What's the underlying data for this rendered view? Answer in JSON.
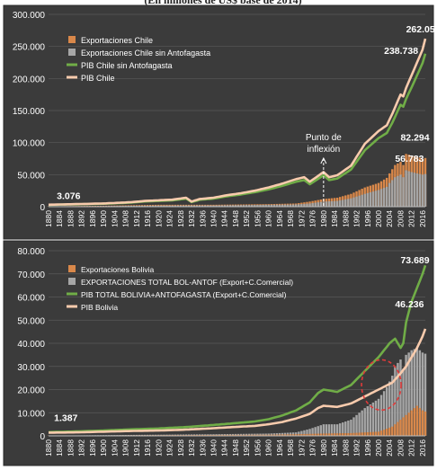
{
  "caption": "(En millones de US$ base de 2014)",
  "chart_data": [
    {
      "type": "bar+line",
      "title": "",
      "ylim": [
        0,
        300000
      ],
      "y_ticks": [
        "0",
        "50.000",
        "100.000",
        "150.000",
        "200.000",
        "250.000",
        "300.000"
      ],
      "y_tick_values": [
        0,
        50000,
        100000,
        150000,
        200000,
        250000,
        300000
      ],
      "x_start": 1880,
      "x_end": 2017,
      "x_tick_step": 4,
      "legend": [
        {
          "label": "Exportaciones Chile",
          "color": "#d9884a",
          "kind": "bar"
        },
        {
          "label": "Exportaciones Chile sin Antofagasta",
          "color": "#a6a6a6",
          "kind": "bar"
        },
        {
          "label": "PIB Chile sin Antofagasta",
          "color": "#70ad47",
          "kind": "line"
        },
        {
          "label": "PIB Chile",
          "color": "#f8cbad",
          "kind": "line"
        }
      ],
      "series": [
        {
          "name": "PIB Chile",
          "x": [
            1880,
            1890,
            1900,
            1910,
            1915,
            1920,
            1925,
            1930,
            1932,
            1935,
            1940,
            1945,
            1950,
            1955,
            1960,
            1965,
            1970,
            1973,
            1975,
            1980,
            1982,
            1985,
            1990,
            1995,
            2000,
            2003,
            2005,
            2008,
            2009,
            2010,
            2012,
            2014,
            2016,
            2017
          ],
          "values": [
            3076,
            4000,
            5000,
            7000,
            9000,
            10000,
            11000,
            14000,
            8000,
            12000,
            14000,
            18000,
            21000,
            25000,
            30000,
            36000,
            43000,
            46000,
            39000,
            54000,
            46000,
            49000,
            64000,
            98000,
            118000,
            127000,
            145000,
            175000,
            172000,
            185000,
            205000,
            225000,
            245000,
            262056
          ]
        },
        {
          "name": "PIB Chile sin Antofagasta",
          "x": [
            1880,
            1890,
            1900,
            1910,
            1915,
            1920,
            1925,
            1930,
            1932,
            1935,
            1940,
            1945,
            1950,
            1955,
            1960,
            1965,
            1970,
            1973,
            1975,
            1980,
            1982,
            1985,
            1990,
            1995,
            2000,
            2003,
            2005,
            2008,
            2009,
            2010,
            2012,
            2014,
            2016,
            2017
          ],
          "values": [
            2900,
            3700,
            4600,
            6300,
            8100,
            9000,
            9900,
            12600,
            7200,
            10800,
            12600,
            16300,
            19000,
            22600,
            27000,
            32500,
            39000,
            41500,
            35000,
            49000,
            41500,
            44000,
            58000,
            88000,
            107000,
            115000,
            131000,
            159000,
            156000,
            168000,
            186000,
            205000,
            224000,
            238738
          ]
        },
        {
          "name": "Exportaciones Chile",
          "x": [
            1880,
            1900,
            1920,
            1940,
            1960,
            1970,
            1975,
            1980,
            1985,
            1990,
            1995,
            2000,
            2003,
            2004,
            2006,
            2008,
            2009,
            2010,
            2012,
            2014,
            2016,
            2017
          ],
          "values": [
            500,
            1500,
            3000,
            3000,
            4000,
            5000,
            8000,
            12000,
            14000,
            20000,
            30000,
            37000,
            45000,
            52000,
            65000,
            70000,
            65000,
            82294,
            80000,
            78000,
            75000,
            76000
          ]
        },
        {
          "name": "Exportaciones Chile sin Antofagasta",
          "x": [
            1880,
            1900,
            1920,
            1940,
            1960,
            1970,
            1975,
            1980,
            1985,
            1990,
            1995,
            2000,
            2003,
            2004,
            2006,
            2008,
            2009,
            2010,
            2012,
            2014,
            2016,
            2017
          ],
          "values": [
            400,
            1000,
            1800,
            2000,
            3000,
            3500,
            5000,
            8000,
            9000,
            13000,
            20000,
            26000,
            31000,
            37000,
            46000,
            50000,
            46000,
            56783,
            54000,
            52000,
            50000,
            51000
          ]
        }
      ],
      "data_labels": [
        {
          "text": "3.076",
          "x": 1883,
          "y": 12000
        },
        {
          "text": "262.056",
          "x": 2010,
          "y": 272000
        },
        {
          "text": "238.738",
          "x": 2002,
          "y": 238000
        },
        {
          "text": "82.294",
          "x": 2008,
          "y": 103000
        },
        {
          "text": "56.783",
          "x": 2006,
          "y": 70000
        }
      ],
      "annotation": {
        "lines": [
          "Punto de",
          "inflexión"
        ],
        "x": 1980
      }
    },
    {
      "type": "bar+line",
      "title": "",
      "ylim": [
        0,
        80000
      ],
      "y_ticks": [
        "0",
        "10.000",
        "20.000",
        "30.000",
        "40.000",
        "50.000",
        "60.000",
        "70.000",
        "80.000"
      ],
      "y_tick_values": [
        0,
        10000,
        20000,
        30000,
        40000,
        50000,
        60000,
        70000,
        80000
      ],
      "x_start": 1880,
      "x_end": 2017,
      "x_tick_step": 4,
      "legend": [
        {
          "label": "Exportaciones Bolivia",
          "color": "#d9884a",
          "kind": "bar"
        },
        {
          "label": "EXPORTACIONES TOTAL BOL-ANTOF (Export+C.Comercial)",
          "color": "#a6a6a6",
          "kind": "bar"
        },
        {
          "label": "PIB TOTAL BOLIVIA+ANTOFAGASTA (Export+C.Comercial)",
          "color": "#70ad47",
          "kind": "line"
        },
        {
          "label": "PIB Bolivia",
          "color": "#f8cbad",
          "kind": "line"
        }
      ],
      "series": [
        {
          "name": "PIB Bolivia",
          "x": [
            1880,
            1890,
            1900,
            1910,
            1920,
            1930,
            1940,
            1950,
            1955,
            1960,
            1965,
            1970,
            1975,
            1978,
            1980,
            1985,
            1990,
            1995,
            2000,
            2005,
            2008,
            2010,
            2012,
            2014,
            2016,
            2017
          ],
          "values": [
            1387,
            1500,
            1800,
            2100,
            2300,
            2700,
            3300,
            4000,
            4300,
            5000,
            6000,
            7500,
            9500,
            12000,
            13000,
            12500,
            14000,
            17000,
            20000,
            23000,
            27000,
            30000,
            34000,
            38000,
            43000,
            46236
          ]
        },
        {
          "name": "PIB TOTAL BOLIVIA+ANTOFAGASTA (Export+C.Comercial)",
          "x": [
            1880,
            1890,
            1900,
            1910,
            1920,
            1930,
            1940,
            1950,
            1955,
            1960,
            1965,
            1970,
            1975,
            1978,
            1980,
            1985,
            1990,
            1995,
            2000,
            2004,
            2006,
            2008,
            2009,
            2010,
            2012,
            2014,
            2016,
            2017
          ],
          "values": [
            1600,
            1900,
            2300,
            2800,
            3200,
            3800,
            4700,
            5700,
            6200,
            7200,
            8800,
            11000,
            14500,
            18500,
            20000,
            19000,
            22000,
            28000,
            34000,
            40000,
            42000,
            38000,
            40000,
            49000,
            58000,
            64000,
            70000,
            73689
          ]
        },
        {
          "name": "Exportaciones Bolivia",
          "x": [
            1880,
            1900,
            1920,
            1940,
            1960,
            1970,
            1980,
            1990,
            2000,
            2005,
            2008,
            2010,
            2012,
            2014,
            2016,
            2017
          ],
          "values": [
            100,
            200,
            300,
            400,
            500,
            700,
            1000,
            1200,
            1800,
            4000,
            7000,
            9000,
            11000,
            13000,
            11000,
            10500
          ]
        },
        {
          "name": "EXPORTACIONES TOTAL BOL-ANTOF (Export+C.Comercial)",
          "x": [
            1880,
            1900,
            1920,
            1940,
            1960,
            1970,
            1975,
            1980,
            1985,
            1990,
            1995,
            2000,
            2003,
            2005,
            2006,
            2008,
            2009,
            2010,
            2012,
            2014,
            2016,
            2017
          ],
          "values": [
            100,
            300,
            500,
            700,
            1000,
            1500,
            3000,
            5000,
            5000,
            7000,
            12000,
            16000,
            21000,
            26000,
            30000,
            33000,
            29000,
            35000,
            37000,
            38000,
            36000,
            35500
          ]
        }
      ],
      "data_labels": [
        {
          "text": "1.387",
          "x": 1882,
          "y": 6500
        },
        {
          "text": "73.689",
          "x": 2008,
          "y": 74500
        },
        {
          "text": "46.236",
          "x": 2006,
          "y": 55500
        }
      ],
      "highlight": {
        "x_center": 2001,
        "y_center": 22000
      }
    }
  ]
}
